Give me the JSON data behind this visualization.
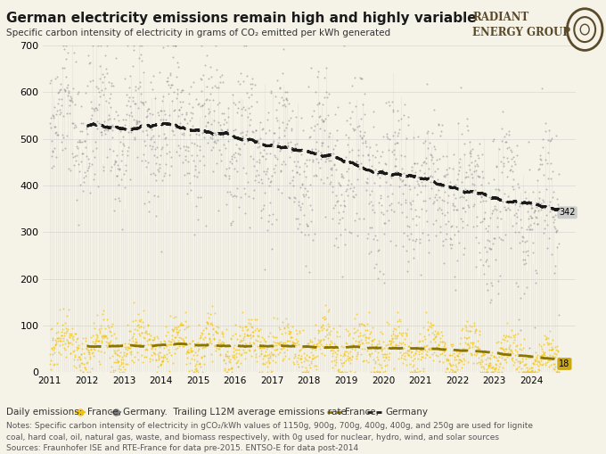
{
  "title": "German electricity emissions remain high and highly variable",
  "subtitle1": "Specific carbon intensity of electricity in grams of CO₂ emitted per kWh generated",
  "legend_text": "Daily emissions:  ●  France,  ●  Germany. Trailing L12M average emissions rate: — France, — Germany",
  "notes": "Notes: Specific carbon intensity of electricity in gCO₂/kWh values of 1150g, 900g, 700g, 400g, 400g, and 250g are used for lignite\ncoal, hard coal, oil, natural gas, waste, and biomass respectively, with 0g used for nuclear, hydro, wind, and solar sources\nSources: Fraunhofer ISE and RTE-France for data pre-2015. ENTSO-E for data post-2014",
  "bg_color": "#f5f2e8",
  "france_color": "#f5c400",
  "germany_color": "#808080",
  "france_avg_color": "#8B7500",
  "germany_avg_color": "#1a1a1a",
  "label_342_color": "#c8c8c8",
  "label_18_color": "#c8a000",
  "ylim": [
    0,
    700
  ],
  "yticks": [
    0,
    100,
    200,
    300,
    400,
    500,
    600,
    700
  ],
  "date_start": 2011.0,
  "date_end": 2024.9,
  "seed": 42
}
